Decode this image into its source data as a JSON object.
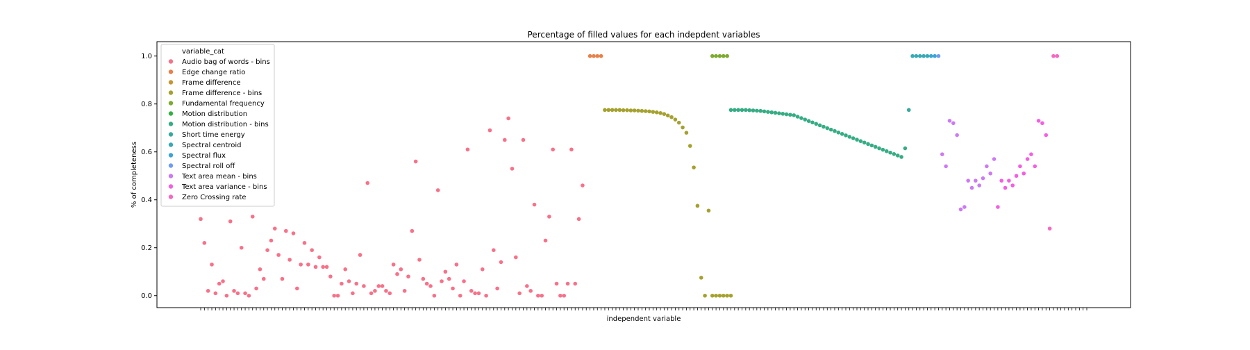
{
  "chart_data": {
    "type": "scatter",
    "title": "Percentage of filled values for each indepdent variables",
    "xlabel": "independent variable",
    "ylabel": "% of completeness",
    "ylim": [
      -0.05,
      1.06
    ],
    "yticks": [
      "0.0",
      "0.2",
      "0.4",
      "0.6",
      "0.8",
      "1.0"
    ],
    "x_count": 240,
    "legend": {
      "title": "variable_cat",
      "placement": "top-left"
    },
    "series": [
      {
        "name": "Audio bag of words - bins",
        "color": "#f77189",
        "x": [
          0,
          1,
          2,
          3,
          4,
          5,
          6,
          7,
          8,
          9,
          10,
          11,
          12,
          13,
          14,
          15,
          16,
          17,
          18,
          19,
          20,
          21,
          22,
          23,
          24,
          25,
          26,
          27,
          28,
          29,
          30,
          31,
          32,
          33,
          34,
          35,
          36,
          37,
          38,
          39,
          40,
          41,
          42,
          43,
          44,
          45,
          46,
          47,
          48,
          49,
          50,
          51,
          52,
          53,
          54,
          55,
          56,
          57,
          58,
          59,
          60,
          61,
          62,
          63,
          64,
          65,
          66,
          67,
          68,
          69,
          70,
          71,
          72,
          73,
          74,
          75,
          76,
          77,
          78,
          79,
          80,
          81,
          82,
          83,
          84,
          85,
          86,
          87,
          88,
          89,
          90,
          91,
          92,
          93,
          94,
          95,
          96,
          97,
          98,
          99,
          100,
          101,
          102,
          103
        ],
        "y": [
          0.32,
          0.22,
          0.02,
          0.13,
          0.01,
          0.05,
          0.06,
          0.0,
          0.31,
          0.02,
          0.01,
          0.2,
          0.01,
          0.0,
          0.33,
          0.03,
          0.11,
          0.07,
          0.19,
          0.23,
          0.28,
          0.17,
          0.07,
          0.27,
          0.15,
          0.26,
          0.03,
          0.13,
          0.22,
          0.13,
          0.19,
          0.12,
          0.16,
          0.12,
          0.12,
          0.08,
          0.0,
          0.0,
          0.05,
          0.11,
          0.06,
          0.01,
          0.05,
          0.17,
          0.04,
          0.47,
          0.01,
          0.02,
          0.04,
          0.04,
          0.02,
          0.01,
          0.13,
          0.09,
          0.11,
          0.02,
          0.08,
          0.27,
          0.56,
          0.15,
          0.07,
          0.05,
          0.04,
          0.0,
          0.44,
          0.06,
          0.1,
          0.07,
          0.03,
          0.13,
          0.0,
          0.06,
          0.61,
          0.02,
          0.01,
          0.01,
          0.11,
          0.0,
          0.69,
          0.19,
          0.03,
          0.14,
          0.65,
          0.74,
          0.53,
          0.16,
          0.01,
          0.65,
          0.04,
          0.02,
          0.38,
          0.0,
          0.0,
          0.23,
          0.33,
          0.61,
          0.05,
          0.0,
          0.0,
          0.05,
          0.61,
          0.05,
          0.32,
          0.46
        ]
      },
      {
        "name": "Edge change ratio",
        "color": "#e8804a",
        "x": [
          105,
          106,
          107,
          108
        ],
        "y": [
          1.0,
          1.0,
          1.0,
          1.0
        ]
      },
      {
        "name": "Frame difference",
        "color": "#c69532",
        "x": [],
        "y": []
      },
      {
        "name": "Frame difference - bins",
        "color": "#a5a12f",
        "x": [
          109,
          110,
          111,
          112,
          113,
          114,
          115,
          116,
          117,
          118,
          119,
          120,
          121,
          122,
          123,
          124,
          125,
          126,
          127,
          128,
          129,
          130,
          131,
          132,
          133,
          134,
          135,
          136,
          137,
          138,
          139,
          140,
          141,
          142,
          143
        ],
        "y": [
          0.775,
          0.775,
          0.775,
          0.775,
          0.775,
          0.774,
          0.774,
          0.773,
          0.773,
          0.772,
          0.771,
          0.77,
          0.769,
          0.767,
          0.765,
          0.762,
          0.758,
          0.752,
          0.745,
          0.735,
          0.722,
          0.702,
          0.68,
          0.625,
          0.535,
          0.375,
          0.075,
          0.0,
          0.355,
          0.0,
          0.0,
          0.0,
          0.0,
          0.0,
          0.0
        ]
      },
      {
        "name": "Fundamental frequency",
        "color": "#7daa2f",
        "x": [
          138,
          139,
          140,
          141,
          142
        ],
        "y": [
          1.0,
          1.0,
          1.0,
          1.0,
          1.0
        ]
      },
      {
        "name": "Motion distribution",
        "color": "#33b043",
        "x": [],
        "y": []
      },
      {
        "name": "Motion distribution - bins",
        "color": "#35ac84",
        "x": [
          143,
          144,
          145,
          146,
          147,
          148,
          149,
          150,
          151,
          152,
          153,
          154,
          155,
          156,
          157,
          158,
          159,
          160,
          161,
          162,
          163,
          164,
          165,
          166,
          167,
          168,
          169,
          170,
          171,
          172,
          173,
          174,
          175,
          176,
          177,
          178,
          179,
          180,
          181,
          182,
          183,
          184,
          185,
          186,
          187,
          188,
          189,
          190
        ],
        "y": [
          0.775,
          0.775,
          0.775,
          0.775,
          0.775,
          0.774,
          0.773,
          0.772,
          0.771,
          0.769,
          0.767,
          0.765,
          0.763,
          0.761,
          0.759,
          0.757,
          0.755,
          0.753,
          0.747,
          0.741,
          0.735,
          0.729,
          0.723,
          0.717,
          0.711,
          0.705,
          0.699,
          0.693,
          0.687,
          0.681,
          0.675,
          0.669,
          0.663,
          0.657,
          0.651,
          0.645,
          0.639,
          0.633,
          0.627,
          0.621,
          0.615,
          0.609,
          0.603,
          0.597,
          0.591,
          0.585,
          0.579,
          0.615
        ]
      },
      {
        "name": "Short time energy",
        "color": "#37aa9d",
        "x": [
          191
        ],
        "y": [
          0.775
        ]
      },
      {
        "name": "Spectral centroid",
        "color": "#38a9b5",
        "x": [
          192,
          193,
          194,
          195,
          196
        ],
        "y": [
          1.0,
          1.0,
          1.0,
          1.0,
          1.0
        ]
      },
      {
        "name": "Spectral flux",
        "color": "#3aa5d4",
        "x": [
          197,
          198
        ],
        "y": [
          1.0,
          1.0
        ]
      },
      {
        "name": "Spectral roll off",
        "color": "#6e9bf4",
        "x": [
          199
        ],
        "y": [
          1.0
        ]
      },
      {
        "name": "Text area mean - bins",
        "color": "#cc7af4",
        "x": [
          200,
          201,
          202,
          203,
          204,
          205,
          206,
          207,
          208,
          209,
          210,
          211,
          212,
          213,
          214
        ],
        "y": [
          0.59,
          0.54,
          0.73,
          0.72,
          0.67,
          0.36,
          0.37,
          0.48,
          0.45,
          0.48,
          0.46,
          0.49,
          0.54,
          0.51,
          0.57
        ]
      },
      {
        "name": "Text area variance - bins",
        "color": "#f45fe1",
        "x": [
          215,
          216,
          217,
          218,
          219,
          220,
          221,
          222,
          223,
          224,
          225,
          226,
          227,
          228
        ],
        "y": [
          0.37,
          0.48,
          0.45,
          0.48,
          0.46,
          0.5,
          0.54,
          0.51,
          0.57,
          0.59,
          0.54,
          0.73,
          0.72,
          0.67
        ]
      },
      {
        "name": "Zero Crossing rate",
        "color": "#f668c2",
        "x": [
          229,
          230,
          231
        ],
        "y": [
          0.28,
          1.0,
          1.0
        ]
      }
    ]
  }
}
